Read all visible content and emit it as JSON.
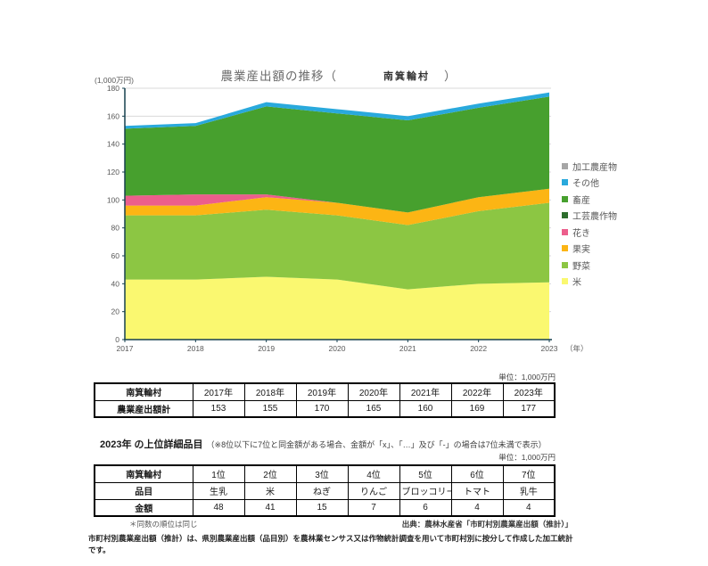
{
  "chart": {
    "title_prefix": "農業産出額の推移（",
    "village": "南箕輪村",
    "title_suffix": "）",
    "y_axis_unit": "(1,000万円)",
    "x_axis_suffix": "（年）"
  },
  "chart_data": {
    "type": "area",
    "stacked": true,
    "title": "農業産出額の推移（南箕輪村）",
    "ylabel": "(1,000万円)",
    "xlabel": "年",
    "ylim": [
      0,
      180
    ],
    "ytick_interval": 20,
    "grid": true,
    "legend_position": "right",
    "x": [
      2017,
      2018,
      2019,
      2020,
      2021,
      2022,
      2023
    ],
    "totals": [
      153,
      155,
      170,
      165,
      160,
      169,
      177
    ],
    "series": [
      {
        "name": "米",
        "color": "#FAF870",
        "values": [
          43,
          43,
          45,
          43,
          36,
          40,
          41
        ]
      },
      {
        "name": "野菜",
        "color": "#8CC643",
        "values": [
          46,
          46,
          48,
          46,
          46,
          52,
          57
        ]
      },
      {
        "name": "果実",
        "color": "#FCB514",
        "values": [
          7,
          7,
          9,
          9,
          9,
          10,
          10
        ]
      },
      {
        "name": "花き",
        "color": "#EC5E8C",
        "values": [
          7,
          8,
          2,
          0,
          0,
          0,
          0
        ]
      },
      {
        "name": "工芸農作物",
        "color": "#2D6E2D",
        "values": [
          0,
          0,
          0,
          0,
          0,
          0,
          0
        ]
      },
      {
        "name": "畜産",
        "color": "#47A02E",
        "values": [
          48,
          49,
          63,
          64,
          66,
          64,
          66
        ]
      },
      {
        "name": "その他",
        "color": "#29A9DC",
        "values": [
          2,
          2,
          3,
          3,
          3,
          3,
          3
        ]
      },
      {
        "name": "加工農産物",
        "color": "#A6A6A6",
        "values": [
          0,
          0,
          0,
          0,
          0,
          0,
          0
        ]
      }
    ],
    "colors": {
      "axis": "#16404F",
      "grid": "#D9D9D9",
      "tick_label": "#595959"
    }
  },
  "table1": {
    "unit_note": "単位：1,000万円",
    "corner": "南箕輪村",
    "columns": [
      "2017年",
      "2018年",
      "2019年",
      "2020年",
      "2021年",
      "2022年",
      "2023年"
    ],
    "rows": [
      {
        "label": "農業産出額計",
        "values": [
          "153",
          "155",
          "170",
          "165",
          "160",
          "169",
          "177"
        ]
      }
    ]
  },
  "section2": {
    "title": "2023年 の上位詳細品目",
    "note": "（※8位以下に7位と同金額がある場合、金額が「x」、「…」及び「-」の場合は7位未満で表示）"
  },
  "table2": {
    "unit_note": "単位：1,000万円",
    "corner": "南箕輪村",
    "columns": [
      "1位",
      "2位",
      "3位",
      "4位",
      "5位",
      "6位",
      "7位"
    ],
    "rows": [
      {
        "label": "品目",
        "values": [
          "生乳",
          "米",
          "ねぎ",
          "りんご",
          "ブロッコリー",
          "トマト",
          "乳牛"
        ]
      },
      {
        "label": "金額",
        "values": [
          "48",
          "41",
          "15",
          "7",
          "6",
          "4",
          "4"
        ]
      }
    ]
  },
  "footer": {
    "tie_note": "＊同数の順位は同じ",
    "source": "出典：農林水産省「市町村別農業産出額（推計）」",
    "description": "市町村別農業産出額（推計）は、県別農業産出額（品目別）を農林業センサス又は作物統計調査を用いて市町村別に按分して作成した加工統計です。"
  }
}
